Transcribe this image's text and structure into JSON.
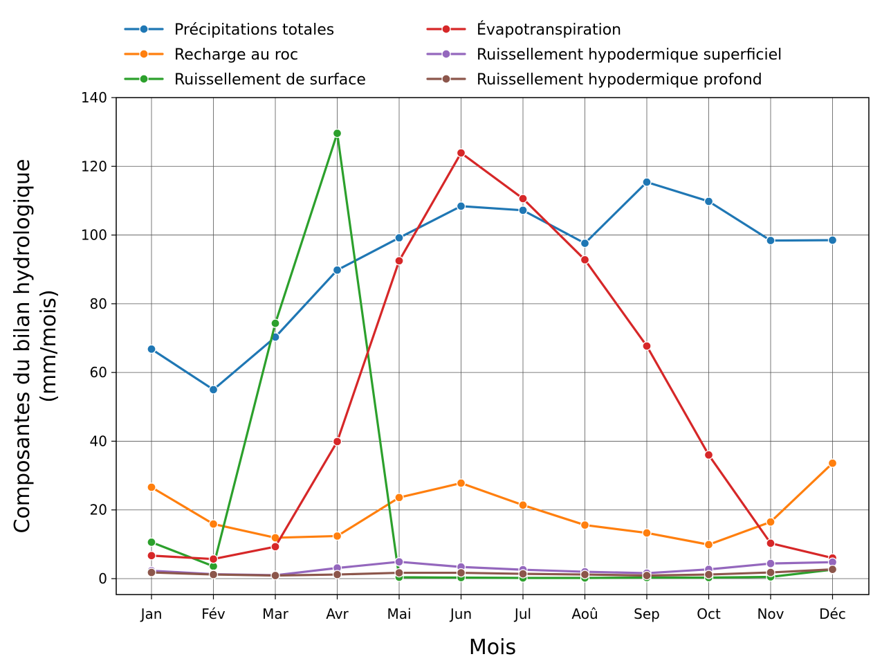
{
  "chart_data": {
    "type": "line",
    "title": "",
    "xlabel": "Mois",
    "ylabel_lines": [
      "Composantes du bilan hydrologique",
      "(mm/mois)"
    ],
    "categories": [
      "Jan",
      "Fév",
      "Mar",
      "Avr",
      "Mai",
      "Jun",
      "Jul",
      "Aoû",
      "Sep",
      "Oct",
      "Nov",
      "Déc"
    ],
    "ylim": [
      -5,
      140
    ],
    "yticks": [
      0,
      20,
      40,
      60,
      80,
      100,
      120,
      140
    ],
    "grid": true,
    "legend_position": "top",
    "series": [
      {
        "name": "Précipitations totales",
        "color": "#1f77b4",
        "values": [
          66.8,
          55.0,
          70.3,
          89.8,
          99.2,
          108.4,
          107.2,
          97.6,
          115.4,
          109.8,
          98.4,
          98.5
        ]
      },
      {
        "name": "Recharge au roc",
        "color": "#ff7f0e",
        "values": [
          26.6,
          15.9,
          11.9,
          12.4,
          23.6,
          27.8,
          21.4,
          15.6,
          13.3,
          9.9,
          16.5,
          33.6
        ]
      },
      {
        "name": "Ruissellement de surface",
        "color": "#2ca02c",
        "values": [
          10.6,
          3.6,
          74.3,
          129.6,
          0.4,
          0.3,
          0.2,
          0.2,
          0.3,
          0.3,
          0.5,
          2.6
        ]
      },
      {
        "name": "Évapotranspiration",
        "color": "#d62728",
        "values": [
          6.7,
          5.7,
          9.3,
          39.9,
          92.5,
          123.9,
          110.6,
          92.8,
          67.7,
          36.0,
          10.3,
          6.0
        ]
      },
      {
        "name": "Ruissellement hypodermique superficiel",
        "color": "#9467bd",
        "values": [
          2.3,
          1.3,
          1.0,
          3.1,
          4.9,
          3.4,
          2.6,
          2.0,
          1.6,
          2.7,
          4.4,
          4.8
        ]
      },
      {
        "name": "Ruissellement hypodermique profond",
        "color": "#8c564b",
        "values": [
          1.8,
          1.2,
          0.9,
          1.2,
          1.7,
          1.7,
          1.4,
          1.2,
          0.9,
          1.2,
          1.8,
          2.7
        ]
      }
    ]
  }
}
